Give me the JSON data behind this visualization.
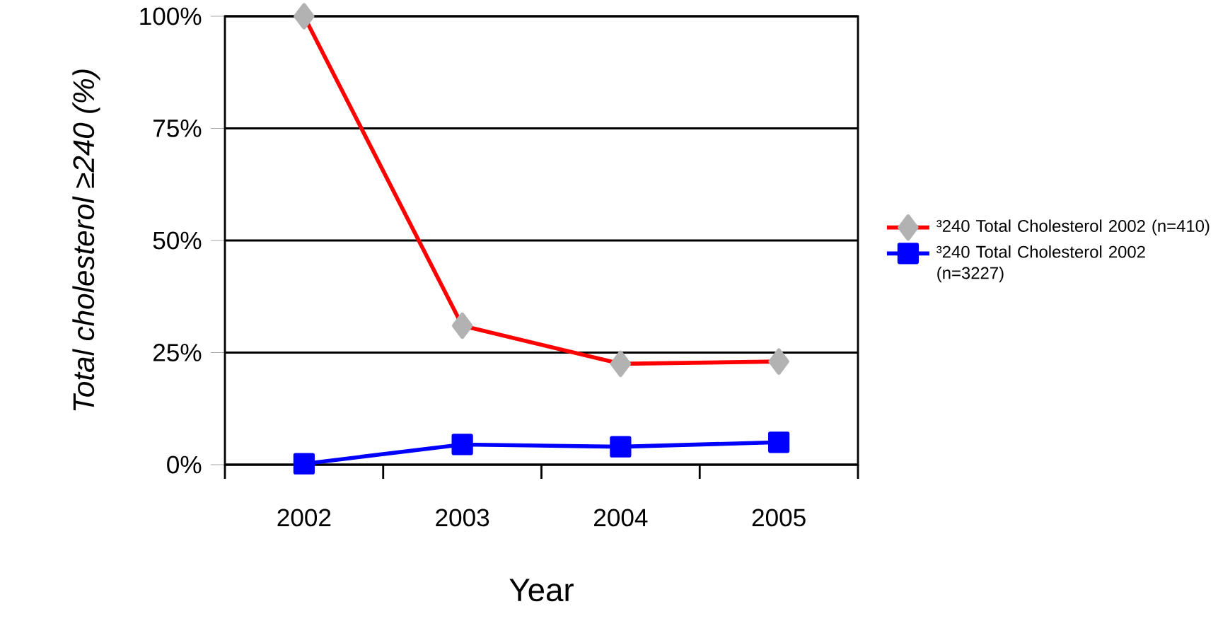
{
  "chart_data": {
    "type": "line",
    "xlabel": "Year",
    "ylabel": "Total cholesterol ≥240 (%)",
    "categories": [
      "2002",
      "2003",
      "2004",
      "2005"
    ],
    "series": [
      {
        "name": "³240 Total Cholesterol 2002 (n=410)",
        "color": "#ff0000",
        "marker": "diamond",
        "values": [
          100,
          31,
          22.5,
          23
        ]
      },
      {
        "name": "³240 Total Cholesterol 2002 (n=3227)",
        "color": "#0000ff",
        "marker": "square",
        "values": [
          0.2,
          4.5,
          4,
          5
        ]
      }
    ],
    "ylim": [
      0,
      100
    ],
    "yticks": [
      {
        "value": 0,
        "label": "0%"
      },
      {
        "value": 25,
        "label": "25%"
      },
      {
        "value": 50,
        "label": "50%"
      },
      {
        "value": 75,
        "label": "75%"
      },
      {
        "value": 100,
        "label": "100%"
      }
    ],
    "grid": "y",
    "legend": "right",
    "line_style": "solid"
  }
}
